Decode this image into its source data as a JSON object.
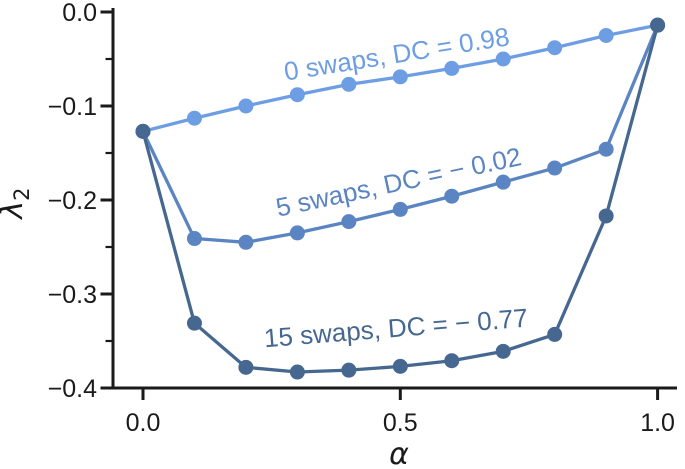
{
  "chart_data": {
    "type": "line",
    "title": "",
    "xlabel": "α",
    "ylabel_base": "λ",
    "ylabel_sub": "2",
    "background": "#ffffff",
    "axis_color": "#1a1a1a",
    "grid": false,
    "legend": "inline-rotated-labels",
    "xlim": [
      0.0,
      1.0
    ],
    "ylim": [
      -0.4,
      0.0
    ],
    "x": [
      0.0,
      0.1,
      0.2,
      0.3,
      0.4,
      0.5,
      0.6,
      0.7,
      0.8,
      0.9,
      1.0
    ],
    "series": [
      {
        "name": "0 swaps",
        "dc": 0.98,
        "label": "0 swaps, DC = 0.98",
        "color": "#6D9DE3",
        "values": [
          -0.127,
          -0.113,
          -0.1,
          -0.088,
          -0.077,
          -0.069,
          -0.06,
          -0.05,
          -0.038,
          -0.025,
          -0.014
        ]
      },
      {
        "name": "5 swaps",
        "dc": -0.02,
        "label": "5 swaps, DC = − 0.02",
        "color": "#5B84C2",
        "values": [
          -0.127,
          -0.241,
          -0.245,
          -0.235,
          -0.223,
          -0.21,
          -0.196,
          -0.181,
          -0.166,
          -0.146,
          -0.014
        ]
      },
      {
        "name": "15 swaps",
        "dc": -0.77,
        "label": "15 swaps, DC = − 0.77",
        "color": "#466890",
        "values": [
          -0.127,
          -0.331,
          -0.378,
          -0.383,
          -0.381,
          -0.377,
          -0.371,
          -0.361,
          -0.343,
          -0.217,
          -0.014
        ]
      }
    ],
    "xticks": {
      "values": [
        0.0,
        0.5,
        1.0
      ],
      "labels": [
        "0.0",
        "0.5",
        "1.0"
      ]
    },
    "yticks": {
      "values": [
        0.0,
        -0.1,
        -0.2,
        -0.3,
        -0.4
      ],
      "labels": [
        "0.0",
        "−0.1",
        "−0.2",
        "−0.3",
        "−0.4"
      ]
    },
    "yticks_minor": [
      -0.05,
      -0.15,
      -0.25,
      -0.35
    ]
  }
}
